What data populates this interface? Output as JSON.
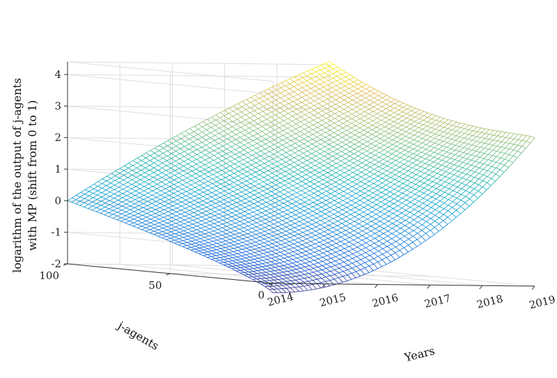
{
  "chart_data": {
    "type": "surface",
    "zlabel_lines": [
      "logarithm of the output of j-agents",
      "with MP (shift from 0 to 1)"
    ],
    "xlabel": "Years",
    "ylabel": "j-agents",
    "x_ticks": [
      "2014",
      "2015",
      "2016",
      "2017",
      "2018",
      "2019"
    ],
    "y_ticks": [
      "0",
      "50",
      "100"
    ],
    "z_ticks": [
      "-2",
      "-1",
      "0",
      "1",
      "2",
      "3",
      "4"
    ],
    "xlim": [
      2014,
      2019
    ],
    "ylim": [
      0,
      100
    ],
    "zlim": [
      -2,
      4
    ],
    "grid": true,
    "colormap": "parula",
    "surface_samples": {
      "note_free": true,
      "corner_values": [
        {
          "year": 2014,
          "j_agents": 100,
          "value": 0.0
        },
        {
          "year": 2014,
          "j_agents": 0,
          "value": -2.3
        },
        {
          "year": 2019,
          "j_agents": 0,
          "value": 2.7
        },
        {
          "year": 2019,
          "j_agents": 100,
          "value": 4.5
        }
      ]
    }
  }
}
